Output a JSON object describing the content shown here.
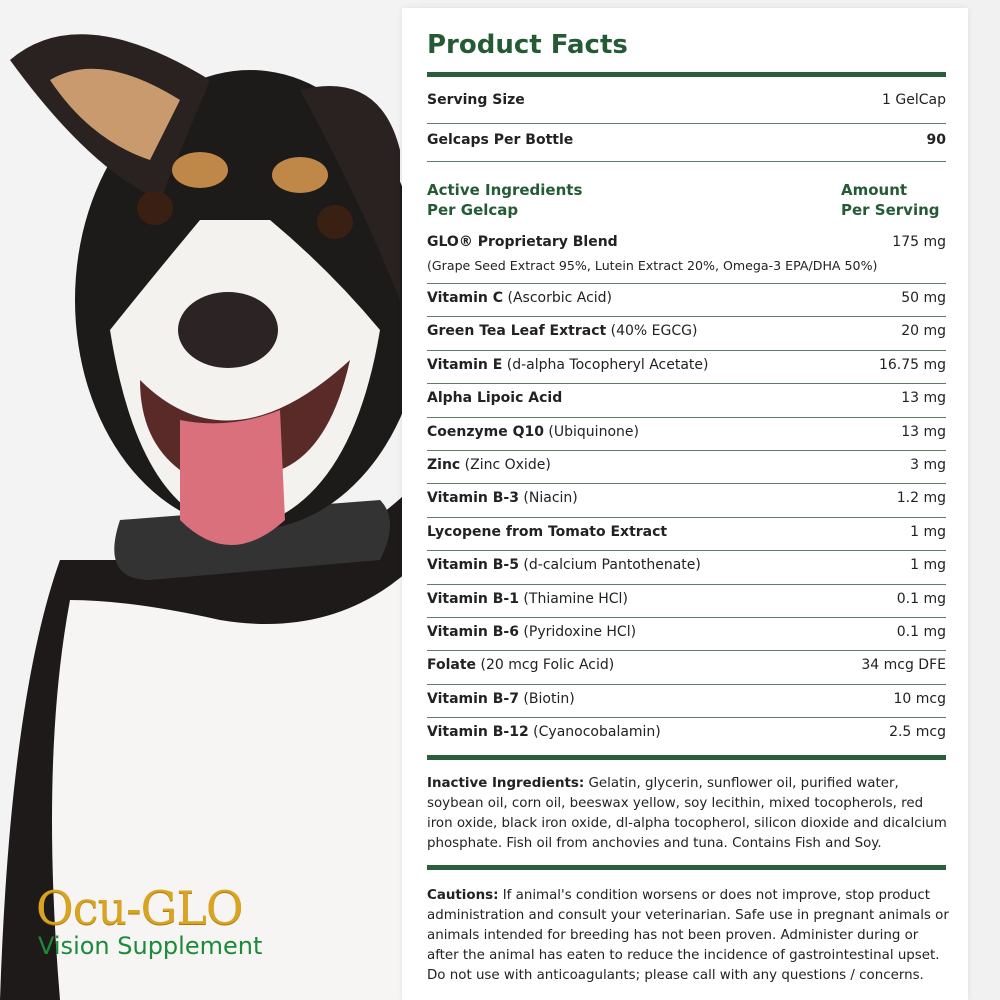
{
  "brand": {
    "name": "Ocu-GLO",
    "tagline": "Vision Supplement"
  },
  "facts": {
    "title": "Product Facts",
    "serving_size_label": "Serving Size",
    "serving_size_value": "1 GelCap",
    "per_bottle_label": "Gelcaps Per Bottle",
    "per_bottle_value": "90",
    "col_left_1": "Active Ingredients",
    "col_left_2": "Per Gelcap",
    "col_right_1": "Amount",
    "col_right_2": "Per Serving",
    "blend_name": "GLO® Proprietary Blend",
    "blend_amount": "175 mg",
    "blend_detail": "(Grape Seed Extract 95%, Lutein Extract 20%, Omega-3 EPA/DHA 50%)",
    "ingredients": [
      {
        "name": "Vitamin C",
        "detail": " (Ascorbic Acid)",
        "amount": "50 mg"
      },
      {
        "name": "Green Tea Leaf Extract",
        "detail": " (40% EGCG)",
        "amount": "20 mg"
      },
      {
        "name": "Vitamin E",
        "detail": " (d-alpha Tocopheryl Acetate)",
        "amount": "16.75 mg"
      },
      {
        "name": "Alpha Lipoic Acid",
        "detail": "",
        "amount": "13 mg"
      },
      {
        "name": "Coenzyme Q10",
        "detail": " (Ubiquinone)",
        "amount": "13 mg"
      },
      {
        "name": "Zinc",
        "detail": " (Zinc Oxide)",
        "amount": "3 mg"
      },
      {
        "name": "Vitamin B-3",
        "detail": " (Niacin)",
        "amount": "1.2 mg"
      },
      {
        "name": "Lycopene from Tomato Extract",
        "detail": "",
        "amount": "1 mg"
      },
      {
        "name": "Vitamin B-5",
        "detail": " (d-calcium Pantothenate)",
        "amount": "1 mg"
      },
      {
        "name": "Vitamin B-1",
        "detail": " (Thiamine HCl)",
        "amount": "0.1 mg"
      },
      {
        "name": "Vitamin B-6",
        "detail": " (Pyridoxine HCl)",
        "amount": "0.1 mg"
      },
      {
        "name": "Folate",
        "detail": " (20 mcg Folic Acid)",
        "amount": "34 mcg DFE"
      },
      {
        "name": "Vitamin B-7",
        "detail": " (Biotin)",
        "amount": "10 mcg"
      },
      {
        "name": "Vitamin B-12",
        "detail": " (Cyanocobalamin)",
        "amount": "2.5 mcg"
      }
    ],
    "inactive_label": "Inactive Ingredients:",
    "inactive_text": " Gelatin, glycerin, sunflower oil, purified water, soybean oil, corn oil, beeswax yellow, soy lecithin, mixed tocopherols, red iron oxide, black iron oxide, dl-alpha tocopherol, silicon dioxide and dicalcium phosphate. Fish oil from anchovies and tuna. Contains Fish and Soy.",
    "cautions_label": "Cautions:",
    "cautions_text": " If animal's condition worsens or does not improve, stop product administration and consult your veterinarian. Safe use in pregnant animals or animals intended for breeding has not been proven. Administer during or after the animal has eaten to reduce the incidence of gastrointestinal upset. Do not use with anticoagulants; please call with any questions / concerns."
  },
  "colors": {
    "heading_green": "#245b35",
    "rule_green": "#2b5e3a",
    "brand_gold": "#d9a520",
    "brand_green": "#1b8a3a"
  }
}
